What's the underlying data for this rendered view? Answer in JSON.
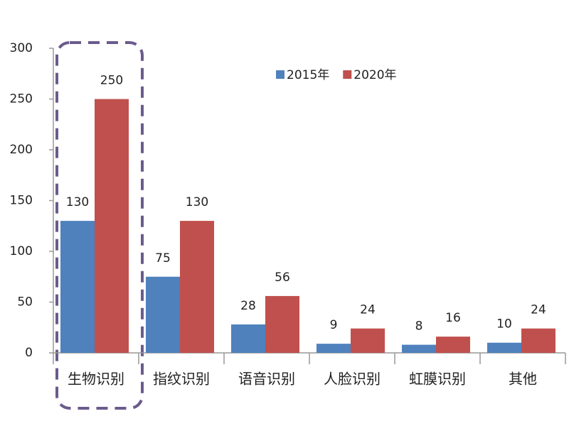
{
  "chart_data": {
    "type": "bar",
    "categories": [
      "生物识别",
      "指纹识别",
      "语音识别",
      "人脸识别",
      "虹膜识别",
      "其他"
    ],
    "series": [
      {
        "name": "2015年",
        "color": "#4f81bd",
        "values": [
          130,
          75,
          28,
          9,
          8,
          10
        ]
      },
      {
        "name": "2020年",
        "color": "#c0504d",
        "values": [
          250,
          130,
          56,
          24,
          16,
          24
        ]
      }
    ],
    "ylim": [
      0,
      300
    ],
    "yticks": [
      0,
      50,
      100,
      150,
      200,
      250,
      300
    ],
    "grid": false,
    "legend": "top"
  }
}
